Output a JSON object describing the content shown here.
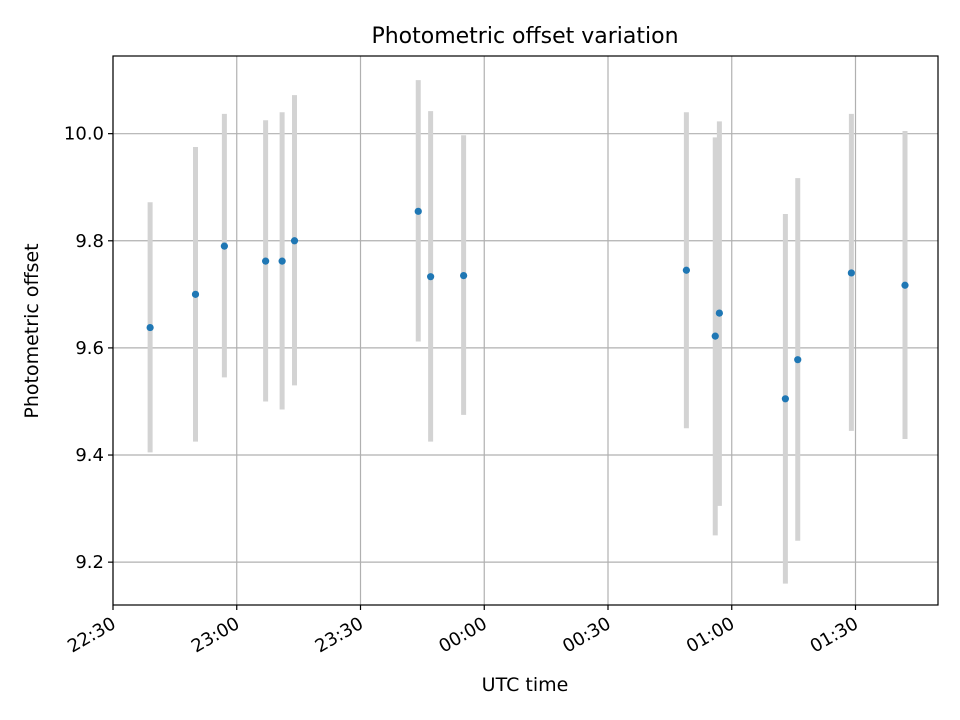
{
  "chart_data": {
    "type": "scatter",
    "title": "Photometric offset variation",
    "xlabel": "UTC time",
    "ylabel": "Photometric offset",
    "x_axis_kind": "time",
    "x_start_date": "2000-01-01",
    "xlim": [
      "22:30",
      "01:50"
    ],
    "ylim": [
      9.12,
      10.145
    ],
    "grid": true,
    "x_ticks": [
      "22:30",
      "23:00",
      "23:30",
      "00:00",
      "00:30",
      "01:00",
      "01:30"
    ],
    "y_ticks": [
      9.2,
      9.4,
      9.6,
      9.8,
      10.0
    ],
    "marker_color": "#1f77b4",
    "errorbar_color": "#d3d3d3",
    "points": [
      {
        "t": "22:39",
        "y": 9.638,
        "ylow": 9.405,
        "yhigh": 9.872
      },
      {
        "t": "22:50",
        "y": 9.7,
        "ylow": 9.425,
        "yhigh": 9.975
      },
      {
        "t": "22:57",
        "y": 9.79,
        "ylow": 9.545,
        "yhigh": 10.037
      },
      {
        "t": "23:07",
        "y": 9.762,
        "ylow": 9.5,
        "yhigh": 10.025
      },
      {
        "t": "23:11",
        "y": 9.762,
        "ylow": 9.485,
        "yhigh": 10.04
      },
      {
        "t": "23:14",
        "y": 9.8,
        "ylow": 9.53,
        "yhigh": 10.072
      },
      {
        "t": "23:44",
        "y": 9.855,
        "ylow": 9.612,
        "yhigh": 10.1
      },
      {
        "t": "23:47",
        "y": 9.733,
        "ylow": 9.425,
        "yhigh": 10.042
      },
      {
        "t": "23:55",
        "y": 9.735,
        "ylow": 9.475,
        "yhigh": 9.997
      },
      {
        "t": "00:49",
        "y": 9.745,
        "ylow": 9.45,
        "yhigh": 10.04
      },
      {
        "t": "00:56",
        "y": 9.622,
        "ylow": 9.25,
        "yhigh": 9.993
      },
      {
        "t": "00:57",
        "y": 9.665,
        "ylow": 9.305,
        "yhigh": 10.023
      },
      {
        "t": "01:13",
        "y": 9.505,
        "ylow": 9.16,
        "yhigh": 9.85
      },
      {
        "t": "01:16",
        "y": 9.578,
        "ylow": 9.24,
        "yhigh": 9.917
      },
      {
        "t": "01:29",
        "y": 9.74,
        "ylow": 9.445,
        "yhigh": 10.037
      },
      {
        "t": "01:42",
        "y": 9.717,
        "ylow": 9.43,
        "yhigh": 10.005
      }
    ]
  }
}
